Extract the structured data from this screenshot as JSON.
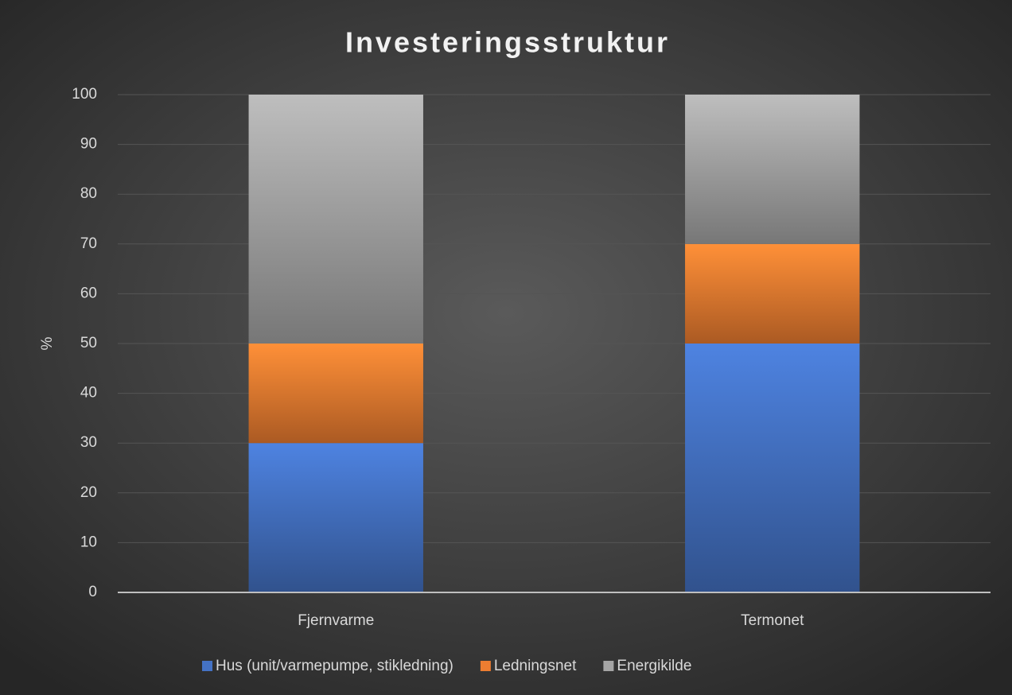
{
  "chart_data": {
    "type": "stacked_bar",
    "title": "Investeringsstruktur",
    "y_label": "%",
    "categories": [
      "Fjernvarme",
      "Termonet"
    ],
    "series": [
      {
        "name": "Hus (unit/varmepumpe, stikledning)",
        "color": "#4472c4",
        "values": [
          30,
          50
        ]
      },
      {
        "name": "Ledningsnet",
        "color": "#ed7d31",
        "values": [
          20,
          20
        ]
      },
      {
        "name": "Energikilde",
        "color": "#a5a5a5",
        "values": [
          50,
          30
        ]
      }
    ],
    "ylim": [
      0,
      100
    ],
    "yticks": [
      0,
      10,
      20,
      30,
      40,
      50,
      60,
      70,
      80,
      90,
      100
    ],
    "grid": true,
    "legend": "bottom"
  }
}
